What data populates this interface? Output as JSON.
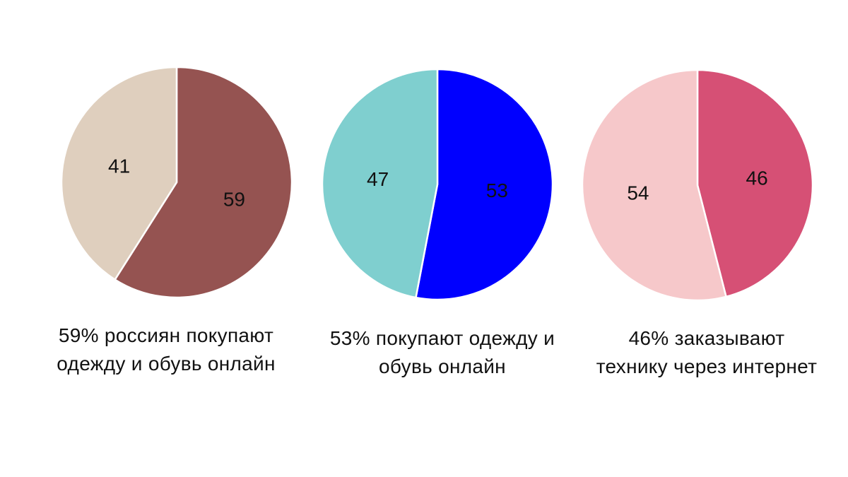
{
  "chart_data": [
    {
      "type": "pie",
      "slices": [
        {
          "label": "59",
          "value": 59,
          "color": "#955351"
        },
        {
          "label": "41",
          "value": 41,
          "color": "#dfcfbe"
        }
      ],
      "caption": [
        "59% россиян покупают",
        "одежду и обувь онлайн"
      ]
    },
    {
      "type": "pie",
      "slices": [
        {
          "label": "53",
          "value": 53,
          "color": "#0000ff"
        },
        {
          "label": "47",
          "value": 47,
          "color": "#7fcfcf"
        }
      ],
      "caption": [
        "53% покупают одежду и",
        "обувь онлайн"
      ]
    },
    {
      "type": "pie",
      "slices": [
        {
          "label": "46",
          "value": 46,
          "color": "#d65075"
        },
        {
          "label": "54",
          "value": 54,
          "color": "#f6c8ca"
        }
      ],
      "caption": [
        "46% заказывают",
        "технику через интернет"
      ]
    }
  ]
}
